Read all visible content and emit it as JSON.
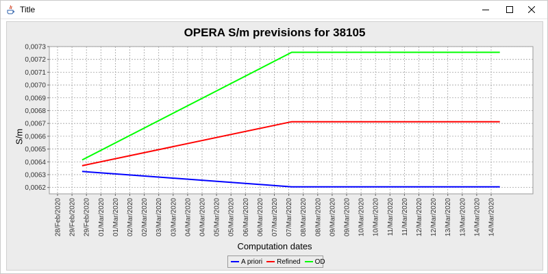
{
  "window": {
    "title": "Title",
    "buttons": {
      "minimize": "minimize",
      "maximize": "maximize",
      "close": "close"
    }
  },
  "chart_data": {
    "type": "line",
    "title": "OPERA S/m previsions for 38105",
    "xlabel": "Computation dates",
    "ylabel": "S/m",
    "ylim": [
      0.00615,
      0.0073
    ],
    "yticks": [
      "0,0062",
      "0,0063",
      "0,0064",
      "0,0065",
      "0,0066",
      "0,0067",
      "0,0068",
      "0,0069",
      "0,0070",
      "0,0071",
      "0,0072",
      "0,0073"
    ],
    "xticks": [
      "28/Feb/2020",
      "29/Feb/2020",
      "29/Feb/2020",
      "01/Mar/2020",
      "01/Mar/2020",
      "02/Mar/2020",
      "02/Mar/2020",
      "03/Mar/2020",
      "03/Mar/2020",
      "04/Mar/2020",
      "04/Mar/2020",
      "05/Mar/2020",
      "05/Mar/2020",
      "06/Mar/2020",
      "06/Mar/2020",
      "07/Mar/2020",
      "07/Mar/2020",
      "08/Mar/2020",
      "08/Mar/2020",
      "09/Mar/2020",
      "09/Mar/2020",
      "10/Mar/2020",
      "10/Mar/2020",
      "11/Mar/2020",
      "11/Mar/2020",
      "12/Mar/2020",
      "12/Mar/2020",
      "13/Mar/2020",
      "13/Mar/2020",
      "14/Mar/2020",
      "14/Mar/2020"
    ],
    "grid": true,
    "legend_position": "bottom",
    "series": [
      {
        "name": "A priori",
        "color": "#0000ff",
        "x": [
          1.7,
          16.2,
          30.6
        ],
        "y": [
          0.006325,
          0.006205,
          0.006205
        ]
      },
      {
        "name": "Refined",
        "color": "#ff0000",
        "x": [
          1.7,
          16.2,
          30.6
        ],
        "y": [
          0.00637,
          0.006713,
          0.006713
        ]
      },
      {
        "name": "OD",
        "color": "#00ff00",
        "x": [
          1.7,
          16.2,
          30.6
        ],
        "y": [
          0.006415,
          0.007255,
          0.007255
        ]
      }
    ]
  }
}
